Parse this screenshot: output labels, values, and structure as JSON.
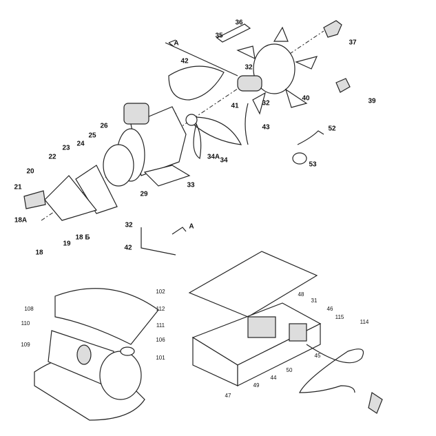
{
  "labels": [
    "36",
    "35",
    "37",
    "A",
    "42",
    "32",
    "40",
    "39",
    "41",
    "32",
    "43",
    "52",
    "26",
    "25",
    "24",
    "23",
    "22",
    "34A",
    "34",
    "53",
    "20",
    "21",
    "33",
    "29",
    "18A",
    "32",
    "A",
    "18 Б",
    "19",
    "42",
    "18",
    "102",
    "48",
    "31",
    "112",
    "108",
    "46",
    "115",
    "114",
    "110",
    "111",
    "106",
    "109",
    "45",
    "101",
    "50",
    "44",
    "49",
    "47"
  ]
}
